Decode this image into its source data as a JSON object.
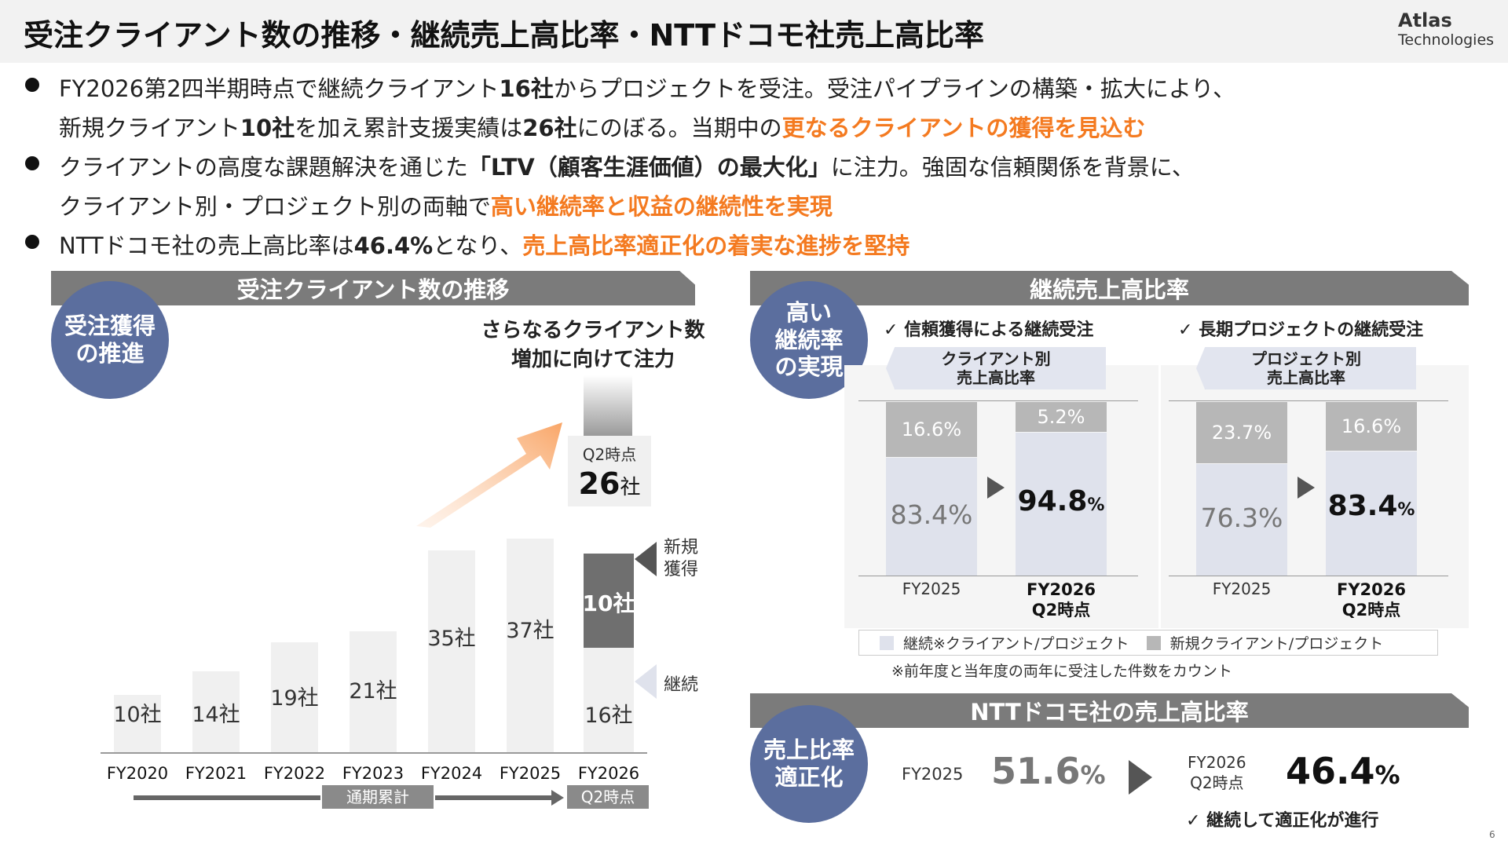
{
  "header": {
    "title": "受注クライアント数の推移・継続売上高比率・NTTドコモ社売上高比率",
    "logo_main": "Atlas",
    "logo_sub": "Technologies"
  },
  "bullets": {
    "b1_l1_a": "FY2026第2四半期時点で継続クライアント",
    "b1_l1_b": "16社",
    "b1_l1_c": "からプロジェクトを受注。受注パイプラインの構築・拡大により、",
    "b1_l2_a": "新規クライアント",
    "b1_l2_b": "10社",
    "b1_l2_c": "を加え累計支援実績は",
    "b1_l2_d": "26社",
    "b1_l2_e": "にのぼる。当期中の",
    "b1_l2_hl": "更なるクライアントの獲得を見込む",
    "b2_l1_a": "クライアントの高度な課題解決を通じた",
    "b2_l1_b": "「LTV（顧客生涯価値）の最大化」",
    "b2_l1_c": "に注力。強固な信頼関係を背景に、",
    "b2_l2_a": "クライアント別・プロジェクト別の両軸で",
    "b2_l2_hl": "高い継続率と収益の継続性を実現",
    "b3_a": "NTTドコモ社の売上高比率は",
    "b3_b": "46.4%",
    "b3_c": "となり、",
    "b3_hl": "売上高比率適正化の着実な進捗を堅持"
  },
  "left": {
    "banner": "受注クライアント数の推移",
    "circle_l1": "受注獲得",
    "circle_l2": "の推進",
    "focus_l1": "さらなるクライアント数",
    "focus_l2": "増加に向けて注力",
    "q2_label": "Q2時点",
    "q2_total_num": "26",
    "q2_total_unit": "社",
    "new_label": "10社",
    "new_side_l1": "新規",
    "new_side_l2": "獲得",
    "cont_label": "16社",
    "cont_side": "継続",
    "period_full": "通期累計",
    "period_q2": "Q2時点"
  },
  "chart_data": {
    "type": "bar",
    "categories": [
      "FY2020",
      "FY2021",
      "FY2022",
      "FY2023",
      "FY2024",
      "FY2025",
      "FY2026"
    ],
    "value_labels": [
      "10社",
      "14社",
      "19社",
      "21社",
      "35社",
      "37社",
      "26社"
    ],
    "values": [
      10,
      14,
      19,
      21,
      35,
      37,
      26
    ],
    "stacked_last": {
      "continuing": 16,
      "new": 10
    }
  },
  "right": {
    "banner": "継続売上高比率",
    "circle_l1": "高い",
    "circle_l2": "継続率",
    "circle_l3": "の実現",
    "check1": "✓ 信頼獲得による継続受注",
    "check2": "✓ 長期プロジェクトの継続受注",
    "client_tag_l1": "クライアント別",
    "client_tag_l2": "売上高比率",
    "project_tag_l1": "プロジェクト別",
    "project_tag_l2": "売上高比率",
    "client": {
      "fy2025_new": "16.6%",
      "fy2025_cont": "83.4%",
      "fy2026_new": "5.2%",
      "fy2026_cont_num": "94.8",
      "fy2026_cont_unit": "%"
    },
    "project": {
      "fy2025_new": "23.7%",
      "fy2025_cont": "76.3%",
      "fy2026_new": "16.6%",
      "fy2026_cont_num": "83.4",
      "fy2026_cont_unit": "%"
    },
    "x_fy2025": "FY2025",
    "x_fy2026_l1": "FY2026",
    "x_fy2026_l2": "Q2時点",
    "legend_cont": "継続※クライアント/プロジェクト",
    "legend_new": "新規クライアント/プロジェクト",
    "footnote": "※前年度と当年度の両年に受注した件数をカウント"
  },
  "docomo": {
    "banner": "NTTドコモ社の売上高比率",
    "circle_l1": "売上比率",
    "circle_l2": "適正化",
    "fy2025_label": "FY2025",
    "fy2025_num": "51.6",
    "fy2025_unit": "%",
    "fy2026_label_l1": "FY2026",
    "fy2026_label_l2": "Q2時点",
    "fy2026_num": "46.4",
    "fy2026_unit": "%",
    "check": "✓ 継続して適正化が進行"
  },
  "page_number": "6",
  "colors": {
    "accent": "#f47a20",
    "circle": "#5b6e9e",
    "banner": "#7b7b7b",
    "continuing": "#dfe2ec",
    "new": "#b7b7b7"
  }
}
